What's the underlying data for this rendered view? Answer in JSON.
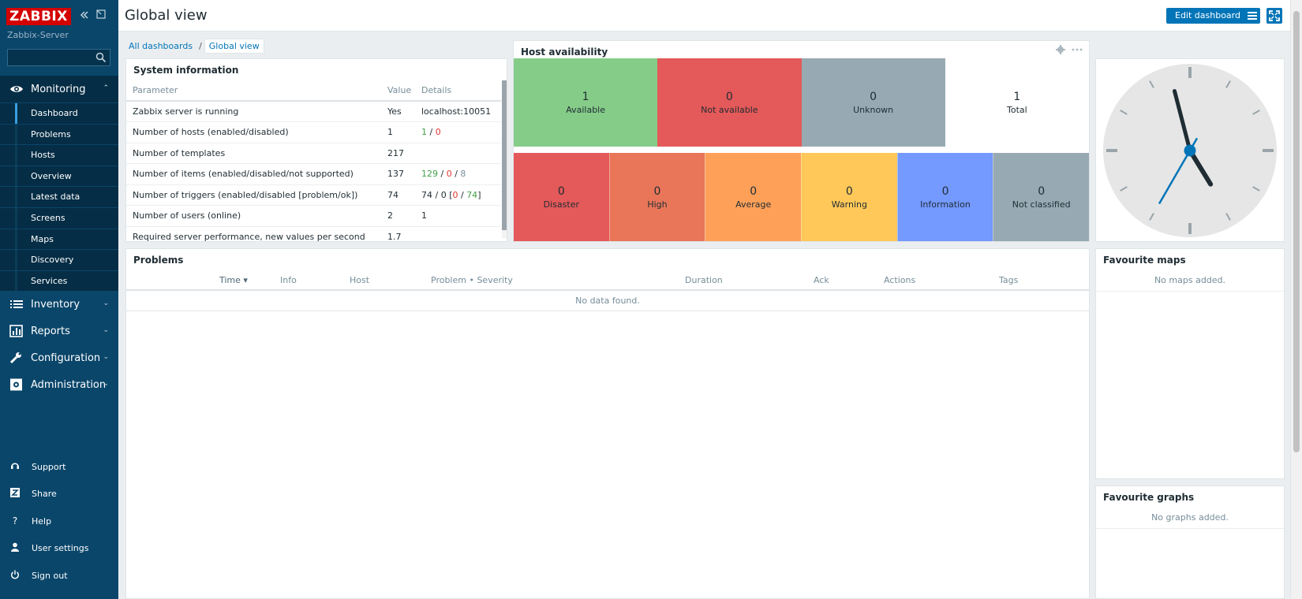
{
  "sidebar": {
    "logo": "ZABBIX",
    "server_name": "Zabbix-Server",
    "search": {
      "placeholder": "",
      "value": ""
    },
    "sections": [
      {
        "label": "Monitoring",
        "expanded": true,
        "icon": "eye-icon"
      },
      {
        "label": "Inventory",
        "expanded": false,
        "icon": "list-icon"
      },
      {
        "label": "Reports",
        "expanded": false,
        "icon": "bar-chart-icon"
      },
      {
        "label": "Configuration",
        "expanded": false,
        "icon": "wrench-icon"
      },
      {
        "label": "Administration",
        "expanded": false,
        "icon": "cog-box-icon"
      }
    ],
    "monitoring_items": [
      "Dashboard",
      "Problems",
      "Hosts",
      "Overview",
      "Latest data",
      "Screens",
      "Maps",
      "Discovery",
      "Services"
    ],
    "bottom_items": [
      {
        "label": "Support",
        "icon": "headset-icon"
      },
      {
        "label": "Share",
        "icon": "share-z-icon"
      },
      {
        "label": "Help",
        "icon": "question-icon"
      },
      {
        "label": "User settings",
        "icon": "user-icon"
      },
      {
        "label": "Sign out",
        "icon": "power-icon"
      }
    ]
  },
  "header": {
    "title": "Global view",
    "edit_button": "Edit dashboard"
  },
  "breadcrumb": {
    "all": "All dashboards",
    "separator": "/",
    "current": "Global view"
  },
  "system_info": {
    "title": "System information",
    "columns": [
      "Parameter",
      "Value",
      "Details"
    ],
    "rows": [
      {
        "param": "Zabbix server is running",
        "value": "Yes",
        "details": "localhost:10051"
      },
      {
        "param": "Number of hosts (enabled/disabled)",
        "value": "1",
        "d1": "1",
        "sep1": " / ",
        "d2": "0"
      },
      {
        "param": "Number of templates",
        "value": "217"
      },
      {
        "param": "Number of items (enabled/disabled/not supported)",
        "value": "137",
        "d1": "129",
        "sep1": " / ",
        "d2": "0",
        "sep2": " / ",
        "d3": "8"
      },
      {
        "param": "Number of triggers (enabled/disabled [problem/ok])",
        "value": "74",
        "t_pre": "74 / 0 [",
        "t_problem": "0",
        "t_sep": " / ",
        "t_ok": "74",
        "t_post": "]"
      },
      {
        "param": "Number of users (online)",
        "value": "2",
        "d1": "1"
      },
      {
        "param": "Required server performance, new values per second",
        "value": "1.7"
      }
    ]
  },
  "host_availability": {
    "title": "Host availability",
    "cells": [
      {
        "num": "1",
        "label": "Available",
        "color": "#86cc89"
      },
      {
        "num": "0",
        "label": "Not available",
        "color": "#e45959"
      },
      {
        "num": "0",
        "label": "Unknown",
        "color": "#97aab3"
      },
      {
        "num": "1",
        "label": "Total",
        "color": "#ffffff"
      }
    ]
  },
  "problems_by_severity": {
    "cells": [
      {
        "num": "0",
        "label": "Disaster",
        "color": "#e45959"
      },
      {
        "num": "0",
        "label": "High",
        "color": "#e97659"
      },
      {
        "num": "0",
        "label": "Average",
        "color": "#ffa059"
      },
      {
        "num": "0",
        "label": "Warning",
        "color": "#ffc859"
      },
      {
        "num": "0",
        "label": "Information",
        "color": "#7499ff"
      },
      {
        "num": "0",
        "label": "Not classified",
        "color": "#97aab3"
      }
    ]
  },
  "problems": {
    "title": "Problems",
    "columns": {
      "time": "Time ▾",
      "info": "Info",
      "host": "Host",
      "problem": "Problem • Severity",
      "duration": "Duration",
      "ack": "Ack",
      "actions": "Actions",
      "tags": "Tags"
    },
    "empty": "No data found."
  },
  "clock": {
    "hour": 4,
    "minute": 57,
    "second": 35
  },
  "favourite_maps": {
    "title": "Favourite maps",
    "empty": "No maps added."
  },
  "favourite_graphs": {
    "title": "Favourite graphs",
    "empty": "No graphs added."
  }
}
